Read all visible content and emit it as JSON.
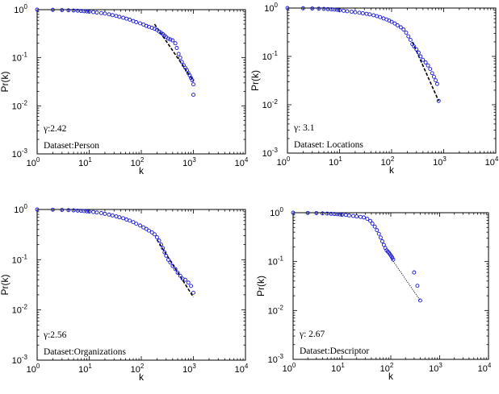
{
  "chart_data": [
    {
      "type": "scatter",
      "xlabel": "k",
      "ylabel": "Pr(k)",
      "x_scale": "log",
      "y_scale": "log",
      "xlim": [
        1,
        10000
      ],
      "ylim": [
        0.001,
        1
      ],
      "x_ticks": [
        {
          "base": "10",
          "exp": "0"
        },
        {
          "base": "10",
          "exp": "1"
        },
        {
          "base": "10",
          "exp": "2"
        },
        {
          "base": "10",
          "exp": "3"
        },
        {
          "base": "10",
          "exp": "4"
        }
      ],
      "y_ticks": [
        {
          "base": "10",
          "exp": "0"
        },
        {
          "base": "10",
          "exp": "-1"
        },
        {
          "base": "10",
          "exp": "-2"
        },
        {
          "base": "10",
          "exp": "-3"
        }
      ],
      "annotations": [
        "γ:2.42",
        "Dataset:Person"
      ],
      "fit_line": {
        "style": "dashed",
        "x": [
          180,
          1000
        ],
        "y": [
          0.5,
          0.033
        ]
      },
      "series": [
        {
          "marker": "circle",
          "color": "#1414d2",
          "x": [
            1,
            2,
            3,
            4,
            5,
            6,
            7,
            8,
            9,
            10,
            12,
            14,
            17,
            20,
            24,
            28,
            33,
            38,
            45,
            52,
            60,
            70,
            80,
            95,
            110,
            125,
            140,
            160,
            180,
            200,
            220,
            240,
            260,
            280,
            300,
            330,
            360,
            400,
            450,
            480,
            520,
            560,
            600,
            650,
            700,
            750,
            800,
            850,
            900,
            950,
            1000,
            1000
          ],
          "y": [
            1.0,
            0.99,
            0.98,
            0.97,
            0.96,
            0.95,
            0.94,
            0.93,
            0.92,
            0.91,
            0.89,
            0.87,
            0.85,
            0.83,
            0.8,
            0.77,
            0.74,
            0.71,
            0.68,
            0.65,
            0.62,
            0.58,
            0.55,
            0.52,
            0.49,
            0.46,
            0.44,
            0.42,
            0.4,
            0.38,
            0.35,
            0.33,
            0.31,
            0.29,
            0.27,
            0.25,
            0.24,
            0.23,
            0.2,
            0.16,
            0.12,
            0.1,
            0.082,
            0.07,
            0.062,
            0.055,
            0.048,
            0.043,
            0.038,
            0.034,
            0.028,
            0.017
          ]
        }
      ]
    },
    {
      "type": "scatter",
      "xlabel": "k",
      "ylabel": "Pr(k)",
      "x_scale": "log",
      "y_scale": "log",
      "xlim": [
        1,
        10000
      ],
      "ylim": [
        0.001,
        1
      ],
      "x_ticks": [
        {
          "base": "10",
          "exp": "0"
        },
        {
          "base": "10",
          "exp": "1"
        },
        {
          "base": "10",
          "exp": "2"
        },
        {
          "base": "10",
          "exp": "3"
        },
        {
          "base": "10",
          "exp": "4"
        }
      ],
      "y_ticks": [
        {
          "base": "10",
          "exp": "0"
        },
        {
          "base": "10",
          "exp": "-1"
        },
        {
          "base": "10",
          "exp": "-2"
        },
        {
          "base": "10",
          "exp": "-3"
        }
      ],
      "annotations": [
        "γ:  3.1",
        "Dataset: Locations"
      ],
      "fit_line": {
        "style": "dashed",
        "x": [
          250,
          800
        ],
        "y": [
          0.2,
          0.012
        ]
      },
      "series": [
        {
          "marker": "circle",
          "color": "#1414d2",
          "x": [
            1,
            2,
            3,
            4,
            5,
            6,
            7,
            8,
            9,
            10,
            12,
            14,
            17,
            20,
            24,
            28,
            33,
            38,
            45,
            52,
            60,
            70,
            80,
            90,
            100,
            115,
            130,
            150,
            170,
            190,
            210,
            230,
            250,
            270,
            300,
            330,
            360,
            400,
            450,
            500,
            550,
            600,
            650,
            700,
            750,
            800
          ],
          "y": [
            1.0,
            0.99,
            0.98,
            0.97,
            0.96,
            0.95,
            0.94,
            0.93,
            0.92,
            0.9,
            0.88,
            0.86,
            0.84,
            0.82,
            0.8,
            0.78,
            0.76,
            0.74,
            0.71,
            0.68,
            0.65,
            0.61,
            0.58,
            0.55,
            0.52,
            0.48,
            0.44,
            0.4,
            0.36,
            0.31,
            0.26,
            0.22,
            0.18,
            0.16,
            0.14,
            0.12,
            0.1,
            0.085,
            0.075,
            0.065,
            0.055,
            0.045,
            0.038,
            0.032,
            0.027,
            0.012
          ]
        }
      ]
    },
    {
      "type": "scatter",
      "xlabel": "k",
      "ylabel": "Pr(k)",
      "x_scale": "log",
      "y_scale": "log",
      "xlim": [
        1,
        10000
      ],
      "ylim": [
        0.001,
        1
      ],
      "x_ticks": [
        {
          "base": "10",
          "exp": "0"
        },
        {
          "base": "10",
          "exp": "1"
        },
        {
          "base": "10",
          "exp": "2"
        },
        {
          "base": "10",
          "exp": "3"
        },
        {
          "base": "10",
          "exp": "4"
        }
      ],
      "y_ticks": [
        {
          "base": "10",
          "exp": "0"
        },
        {
          "base": "10",
          "exp": "-1"
        },
        {
          "base": "10",
          "exp": "-2"
        },
        {
          "base": "10",
          "exp": "-3"
        }
      ],
      "annotations": [
        "γ:2.56",
        "Dataset:Organizations"
      ],
      "fit_line": {
        "style": "dashed",
        "x": [
          200,
          1000
        ],
        "y": [
          0.25,
          0.018
        ]
      },
      "series": [
        {
          "marker": "circle",
          "color": "#1414d2",
          "x": [
            1,
            2,
            3,
            4,
            5,
            6,
            7,
            8,
            9,
            10,
            12,
            14,
            17,
            20,
            24,
            28,
            33,
            38,
            45,
            52,
            60,
            70,
            80,
            95,
            110,
            125,
            140,
            160,
            180,
            200,
            220,
            240,
            260,
            280,
            300,
            330,
            360,
            400,
            450,
            500,
            560,
            620,
            700,
            800,
            900,
            1000
          ],
          "y": [
            1.0,
            0.99,
            0.98,
            0.97,
            0.96,
            0.95,
            0.94,
            0.93,
            0.92,
            0.91,
            0.89,
            0.87,
            0.85,
            0.82,
            0.79,
            0.76,
            0.73,
            0.7,
            0.67,
            0.63,
            0.6,
            0.56,
            0.52,
            0.48,
            0.44,
            0.41,
            0.38,
            0.35,
            0.32,
            0.28,
            0.24,
            0.2,
            0.17,
            0.14,
            0.12,
            0.1,
            0.088,
            0.075,
            0.065,
            0.055,
            0.048,
            0.042,
            0.04,
            0.035,
            0.03,
            0.022
          ]
        }
      ]
    },
    {
      "type": "scatter",
      "xlabel": "k",
      "ylabel": "Pr(k)",
      "x_scale": "log",
      "y_scale": "log",
      "xlim": [
        1,
        10000
      ],
      "ylim": [
        0.001,
        1
      ],
      "x_ticks": [
        {
          "base": "10",
          "exp": "0"
        },
        {
          "base": "10",
          "exp": "1"
        },
        {
          "base": "10",
          "exp": "2"
        },
        {
          "base": "10",
          "exp": "3"
        },
        {
          "base": "10",
          "exp": "4"
        }
      ],
      "y_ticks": [
        {
          "base": "10",
          "exp": "0"
        },
        {
          "base": "10",
          "exp": "-1"
        },
        {
          "base": "10",
          "exp": "-2"
        },
        {
          "base": "10",
          "exp": "-3"
        }
      ],
      "annotations": [
        "γ:  2.67",
        "Dataset:Descriptor"
      ],
      "fit_line": {
        "style": "dotted",
        "x": [
          100,
          400
        ],
        "y": [
          0.12,
          0.016
        ]
      },
      "series": [
        {
          "marker": "circle",
          "color": "#1414d2",
          "x": [
            1,
            2,
            3,
            4,
            5,
            6,
            7,
            8,
            9,
            10,
            12,
            14,
            17,
            20,
            24,
            28,
            33,
            38,
            42,
            47,
            52,
            57,
            62,
            67,
            72,
            77,
            82,
            87,
            92,
            97,
            102,
            107,
            112,
            300,
            350,
            400
          ],
          "y": [
            1.0,
            0.99,
            0.98,
            0.97,
            0.96,
            0.95,
            0.94,
            0.93,
            0.92,
            0.91,
            0.9,
            0.88,
            0.86,
            0.84,
            0.82,
            0.8,
            0.75,
            0.68,
            0.6,
            0.52,
            0.44,
            0.37,
            0.31,
            0.26,
            0.22,
            0.19,
            0.17,
            0.16,
            0.15,
            0.14,
            0.13,
            0.12,
            0.11,
            0.06,
            0.032,
            0.016
          ]
        }
      ]
    }
  ]
}
